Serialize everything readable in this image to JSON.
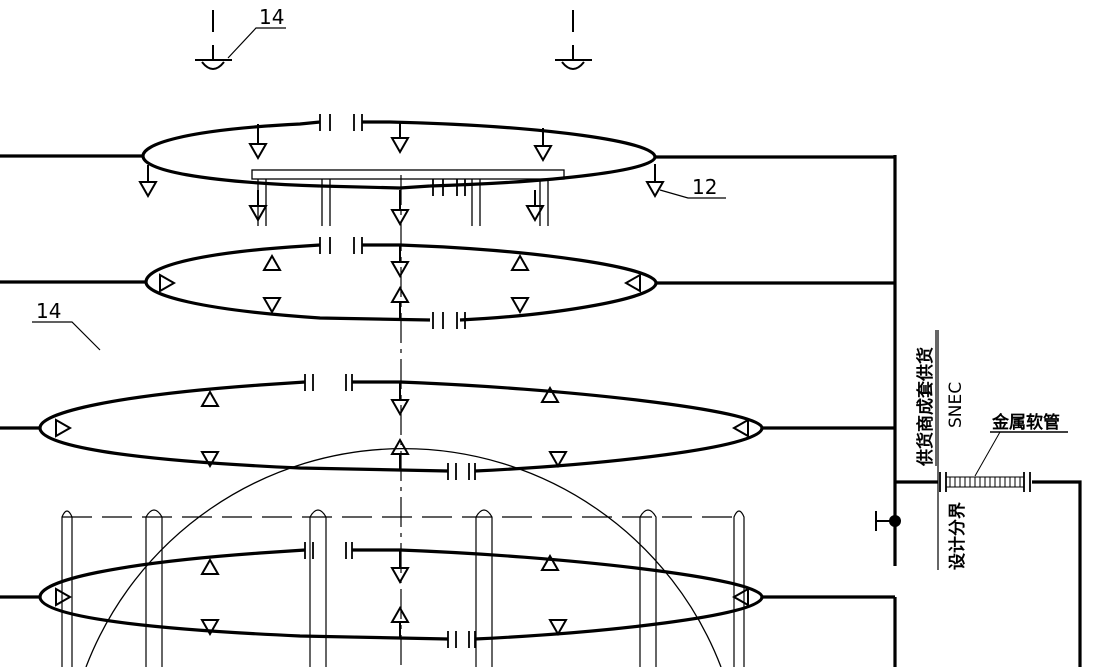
{
  "labels": {
    "callout_top": "14",
    "callout_left": "14",
    "callout_right": "12",
    "supplier_scope": "供货商成套供货",
    "supplier_code": "SNEC",
    "design_boundary": "设计分界",
    "flexible_hose": "金属软管"
  }
}
